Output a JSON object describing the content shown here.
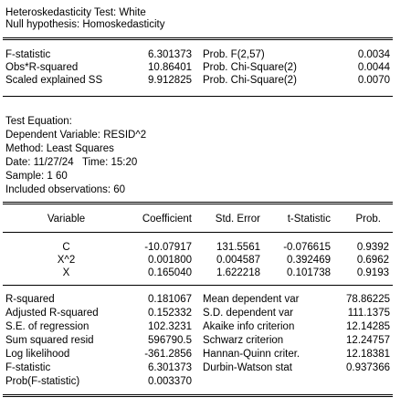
{
  "header": {
    "title": "Heteroskedasticity Test: White",
    "null_hypothesis": "Null hypothesis: Homoskedasticity"
  },
  "test_stats": [
    {
      "label": "F-statistic",
      "value": "6.301373",
      "prob_label": "Prob. F(2,57)",
      "prob_value": "0.0034"
    },
    {
      "label": "Obs*R-squared",
      "value": "10.86401",
      "prob_label": "Prob. Chi-Square(2)",
      "prob_value": "0.0044"
    },
    {
      "label": "Scaled explained SS",
      "value": "9.912825",
      "prob_label": "Prob. Chi-Square(2)",
      "prob_value": "0.0070"
    }
  ],
  "equation_info": {
    "heading": "Test Equation:",
    "dependent": "Dependent Variable: RESID^2",
    "method": "Method: Least Squares",
    "date": "Date: 11/27/24   Time: 15:20",
    "sample": "Sample: 1 60",
    "observations": "Included observations: 60"
  },
  "coef_table": {
    "headers": [
      "Variable",
      "Coefficient",
      "Std. Error",
      "t-Statistic",
      "Prob."
    ],
    "rows": [
      [
        "C",
        "-10.07917",
        "131.5561",
        "-0.076615",
        "0.9392"
      ],
      [
        "X^2",
        "0.001800",
        "0.004587",
        "0.392469",
        "0.6962"
      ],
      [
        "X",
        "0.165040",
        "1.622218",
        "0.101738",
        "0.9193"
      ]
    ]
  },
  "summary_stats": [
    {
      "left_label": "R-squared",
      "left_value": "0.181067",
      "right_label": "Mean dependent var",
      "right_value": "78.86225"
    },
    {
      "left_label": "Adjusted R-squared",
      "left_value": "0.152332",
      "right_label": "S.D. dependent var",
      "right_value": "111.1375"
    },
    {
      "left_label": "S.E. of regression",
      "left_value": "102.3231",
      "right_label": "Akaike info criterion",
      "right_value": "12.14285"
    },
    {
      "left_label": "Sum squared resid",
      "left_value": "596790.5",
      "right_label": "Schwarz criterion",
      "right_value": "12.24757"
    },
    {
      "left_label": "Log likelihood",
      "left_value": "-361.2856",
      "right_label": "Hannan-Quinn criter.",
      "right_value": "12.18381"
    },
    {
      "left_label": "F-statistic",
      "left_value": "6.301373",
      "right_label": "Durbin-Watson stat",
      "right_value": "0.937366"
    },
    {
      "left_label": "Prob(F-statistic)",
      "left_value": "0.003370",
      "right_label": "",
      "right_value": ""
    }
  ]
}
